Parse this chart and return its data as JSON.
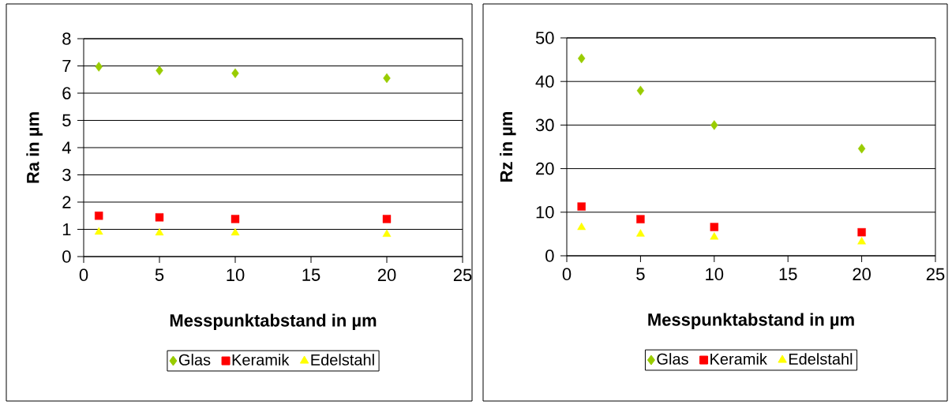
{
  "chart_data": [
    {
      "type": "scatter",
      "xlabel": "Messpunktabstand in µm",
      "ylabel": "Ra in µm",
      "x": [
        1,
        5,
        10,
        20
      ],
      "xlim": [
        0,
        25
      ],
      "xticks": [
        0,
        5,
        10,
        15,
        20,
        25
      ],
      "ylim": [
        0,
        8
      ],
      "yticks": [
        0,
        1,
        2,
        3,
        4,
        5,
        6,
        7,
        8
      ],
      "grid": "y",
      "legend": "bottom",
      "series": [
        {
          "name": "Glas",
          "color": "#99cc00",
          "marker": "diamond",
          "values": [
            6.97,
            6.83,
            6.73,
            6.55
          ]
        },
        {
          "name": "Keramik",
          "color": "#ff0000",
          "marker": "square",
          "values": [
            1.5,
            1.44,
            1.38,
            1.38
          ]
        },
        {
          "name": "Edelstahl",
          "color": "#ffff00",
          "marker": "triangle",
          "values": [
            0.9,
            0.87,
            0.87,
            0.82
          ]
        }
      ]
    },
    {
      "type": "scatter",
      "xlabel": "Messpunktabstand in µm",
      "ylabel": "Rz in µm",
      "x": [
        1,
        5,
        10,
        20
      ],
      "xlim": [
        0,
        25
      ],
      "xticks": [
        0,
        5,
        10,
        15,
        20,
        25
      ],
      "ylim": [
        0,
        50
      ],
      "yticks": [
        0,
        10,
        20,
        30,
        40,
        50
      ],
      "grid": "y",
      "legend": "bottom",
      "series": [
        {
          "name": "Glas",
          "color": "#99cc00",
          "marker": "diamond",
          "values": [
            45.3,
            37.9,
            30.0,
            24.6
          ]
        },
        {
          "name": "Keramik",
          "color": "#ff0000",
          "marker": "square",
          "values": [
            11.3,
            8.4,
            6.6,
            5.4
          ]
        },
        {
          "name": "Edelstahl",
          "color": "#ffff00",
          "marker": "triangle",
          "values": [
            6.5,
            5.0,
            4.3,
            3.2
          ]
        }
      ]
    }
  ]
}
